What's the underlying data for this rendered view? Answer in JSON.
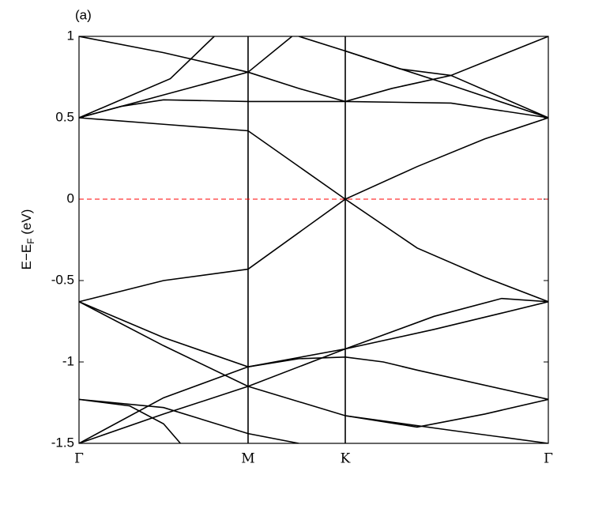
{
  "chart_data": {
    "type": "line",
    "panel_label": "(a)",
    "ylabel": [
      "E−E",
      "F",
      " (eV)"
    ],
    "xlim": [
      0,
      2.776
    ],
    "xticks": [
      {
        "value": 0,
        "label": "Γ"
      },
      {
        "value": 1,
        "label": "M"
      },
      {
        "value": 1.575,
        "label": "K"
      },
      {
        "value": 2.776,
        "label": "Γ"
      }
    ],
    "ylim": [
      -1.5,
      1
    ],
    "yticks": [
      -1.5,
      -1,
      -0.5,
      0,
      0.5,
      1
    ],
    "reference_line": {
      "value": 0,
      "color": "#ff0000",
      "style": "dashed"
    },
    "series": [
      {
        "color": "#000000",
        "x": [
          0,
          0.5,
          1,
          1.575,
          2.0,
          2.4,
          2.776
        ],
        "values": [
          0.5,
          0.46,
          0.42,
          0,
          0.2,
          0.37,
          0.5
        ]
      },
      {
        "color": "#000000",
        "x": [
          0,
          0.25,
          0.5,
          1,
          1.575,
          2.2,
          2.776
        ],
        "values": [
          0.5,
          0.57,
          0.61,
          0.6,
          0.6,
          0.59,
          0.5
        ]
      },
      {
        "color": "#000000",
        "x": [
          0,
          0.5,
          1,
          1.26
        ],
        "values": [
          0.5,
          0.64,
          0.78,
          1.0
        ]
      },
      {
        "color": "#000000",
        "x": [
          0,
          0.5,
          1,
          1.3,
          1.575,
          1.85,
          2.2,
          2.776
        ],
        "values": [
          1.0,
          0.9,
          0.78,
          0.68,
          0.6,
          0.68,
          0.76,
          0.5
        ]
      },
      {
        "color": "#000000",
        "x": [
          0,
          0.54,
          0.8
        ],
        "values": [
          0.5,
          0.74,
          1.0
        ]
      },
      {
        "color": "#000000",
        "x": [
          1.3,
          1.575,
          2.2,
          2.776
        ],
        "values": [
          1.0,
          0.91,
          0.7,
          0.5
        ]
      },
      {
        "color": "#000000",
        "x": [
          1.575,
          1.9,
          2.2,
          2.776
        ],
        "values": [
          0.91,
          0.8,
          0.76,
          1.0
        ]
      },
      {
        "color": "#000000",
        "x": [
          0,
          0.5,
          1,
          1.575,
          2.0,
          2.4,
          2.776
        ],
        "values": [
          -0.63,
          -0.5,
          -0.43,
          0,
          -0.3,
          -0.48,
          -0.63
        ]
      },
      {
        "color": "#000000",
        "x": [
          0,
          0.5,
          1,
          1.575,
          2.1,
          2.5,
          2.776
        ],
        "values": [
          -0.63,
          -0.85,
          -1.03,
          -0.92,
          -0.72,
          -0.61,
          -0.63
        ]
      },
      {
        "color": "#000000",
        "x": [
          0,
          0.5,
          1,
          1.575,
          2.2,
          2.776
        ],
        "values": [
          -0.63,
          -0.9,
          -1.15,
          -1.33,
          -1.42,
          -1.5
        ]
      },
      {
        "color": "#000000",
        "x": [
          0,
          0.5,
          1,
          1.575,
          2.1,
          2.5,
          2.776
        ],
        "values": [
          -1.5,
          -1.32,
          -1.15,
          -0.92,
          -0.8,
          -0.7,
          -0.63
        ]
      },
      {
        "color": "#000000",
        "x": [
          0,
          0.5,
          1,
          1.3,
          1.575,
          1.8,
          2.0,
          2.776
        ],
        "values": [
          -1.5,
          -1.22,
          -1.03,
          -0.98,
          -0.97,
          -1.0,
          -1.05,
          -1.23
        ]
      },
      {
        "color": "#000000",
        "x": [
          0,
          0.3,
          0.5,
          0.6
        ],
        "values": [
          -1.23,
          -1.27,
          -1.38,
          -1.5
        ]
      },
      {
        "color": "#000000",
        "x": [
          0,
          0.5,
          1.0,
          1.3
        ],
        "values": [
          -1.23,
          -1.28,
          -1.44,
          -1.5
        ]
      },
      {
        "color": "#000000",
        "x": [
          1.575,
          2.0,
          2.4,
          2.776
        ],
        "values": [
          -1.33,
          -1.4,
          -1.32,
          -1.23
        ]
      }
    ]
  }
}
